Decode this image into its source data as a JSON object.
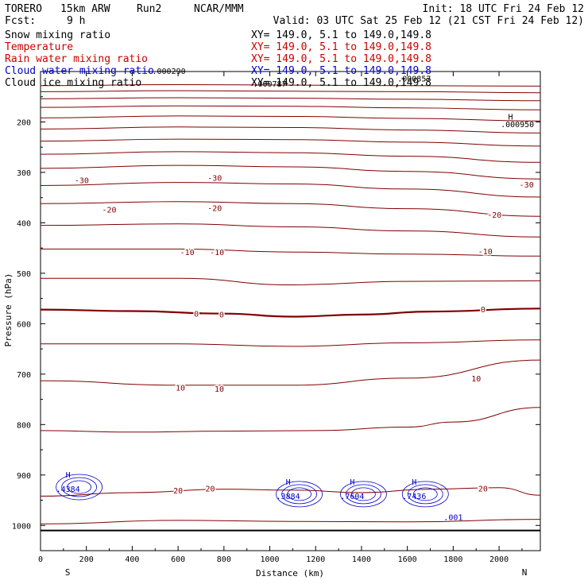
{
  "header": {
    "model": "TORERO",
    "resolution": "15km ARW",
    "run": "Run2",
    "org": "NCAR/MMM",
    "init": "Init: 18 UTC Fri 24 Feb 12",
    "fcst_label": "Fcst:",
    "fcst_value": "9 h",
    "valid": "Valid: 03 UTC Sat 25 Feb 12 (21 CST Fri 24 Feb 12)"
  },
  "fields": [
    {
      "name": "Snow mixing ratio",
      "xy": "XY= 149.0,  5.1 to 149.0,149.8",
      "color": "#000000"
    },
    {
      "name": "Temperature",
      "xy": "XY= 149.0,  5.1 to 149.0,149.8",
      "color": "#cc0000"
    },
    {
      "name": "Rain water mixing ratio",
      "xy": "XY= 149.0,  5.1 to 149.0,149.8",
      "color": "#cc0000"
    },
    {
      "name": "Cloud water mixing ratio",
      "xy": "XY= 149.0,  5.1 to 149.0,149.8",
      "color": "#0000cc"
    },
    {
      "name": "Cloud ice mixing ratio",
      "xy": "XY= 149.0,  5.1 to 149.0,149.8",
      "color": "#000000"
    }
  ],
  "chart_data": {
    "type": "contour-cross-section",
    "xlabel": "Distance (km)",
    "ylabel": "Pressure (hPa)",
    "xlim": [
      0,
      2180
    ],
    "ylim": [
      1050,
      100
    ],
    "x_ticks": [
      0,
      200,
      400,
      600,
      800,
      1000,
      1200,
      1400,
      1600,
      1800,
      2000
    ],
    "y_ticks": [
      200,
      300,
      400,
      500,
      600,
      700,
      800,
      900,
      1000
    ],
    "left_end_label": "S",
    "right_end_label": "N",
    "surface_pressure": 1010,
    "temperature_contours": [
      {
        "value": -50,
        "points": [
          [
            0,
            128
          ],
          [
            600,
            126
          ],
          [
            1100,
            127
          ],
          [
            1600,
            128
          ],
          [
            2180,
            129
          ]
        ]
      },
      {
        "value": -45,
        "points": [
          [
            0,
            140
          ],
          [
            600,
            138
          ],
          [
            1100,
            139
          ],
          [
            1600,
            140
          ],
          [
            2180,
            142
          ]
        ]
      },
      {
        "value": -45,
        "points": [
          [
            0,
            154
          ],
          [
            600,
            152
          ],
          [
            1100,
            153
          ],
          [
            1600,
            155
          ],
          [
            2180,
            158
          ]
        ]
      },
      {
        "value": -40,
        "points": [
          [
            0,
            171
          ],
          [
            600,
            168
          ],
          [
            1100,
            169
          ],
          [
            1600,
            172
          ],
          [
            2180,
            176
          ]
        ]
      },
      {
        "value": -40,
        "points": [
          [
            0,
            192
          ],
          [
            600,
            188
          ],
          [
            1100,
            189
          ],
          [
            1600,
            193
          ],
          [
            2180,
            198
          ]
        ]
      },
      {
        "value": -35,
        "points": [
          [
            0,
            214
          ],
          [
            600,
            210
          ],
          [
            1100,
            211
          ],
          [
            1600,
            216
          ],
          [
            2180,
            222
          ]
        ]
      },
      {
        "value": -35,
        "points": [
          [
            0,
            238
          ],
          [
            600,
            234
          ],
          [
            1100,
            235
          ],
          [
            1600,
            240
          ],
          [
            2180,
            248
          ]
        ]
      },
      {
        "value": -30,
        "points": [
          [
            0,
            264
          ],
          [
            600,
            259
          ],
          [
            1100,
            261
          ],
          [
            1600,
            268
          ],
          [
            2180,
            280
          ]
        ]
      },
      {
        "value": -30,
        "points": [
          [
            0,
            292
          ],
          [
            600,
            286
          ],
          [
            1100,
            289
          ],
          [
            1600,
            298
          ],
          [
            2180,
            313
          ]
        ]
      },
      {
        "value": -25,
        "points": [
          [
            0,
            326
          ],
          [
            600,
            320
          ],
          [
            1100,
            323
          ],
          [
            1600,
            333
          ],
          [
            2180,
            349
          ]
        ]
      },
      {
        "value": -20,
        "points": [
          [
            0,
            362
          ],
          [
            600,
            358
          ],
          [
            1100,
            362
          ],
          [
            1600,
            372
          ],
          [
            2180,
            387
          ]
        ]
      },
      {
        "value": -15,
        "points": [
          [
            0,
            405
          ],
          [
            600,
            402
          ],
          [
            1100,
            408
          ],
          [
            1600,
            416
          ],
          [
            2180,
            428
          ]
        ]
      },
      {
        "value": -10,
        "points": [
          [
            0,
            452
          ],
          [
            600,
            452
          ],
          [
            1100,
            458
          ],
          [
            1600,
            462
          ],
          [
            2180,
            466
          ]
        ]
      },
      {
        "value": -5,
        "points": [
          [
            0,
            510
          ],
          [
            600,
            510
          ],
          [
            1100,
            523
          ],
          [
            1600,
            516
          ],
          [
            2180,
            515
          ]
        ]
      },
      {
        "value": 0,
        "points": [
          [
            0,
            572
          ],
          [
            400,
            575
          ],
          [
            800,
            580
          ],
          [
            1100,
            586
          ],
          [
            1400,
            582
          ],
          [
            1700,
            576
          ],
          [
            2180,
            570
          ]
        ]
      },
      {
        "value": 5,
        "points": [
          [
            0,
            640
          ],
          [
            600,
            640
          ],
          [
            1100,
            645
          ],
          [
            1600,
            638
          ],
          [
            2180,
            632
          ]
        ]
      },
      {
        "value": 10,
        "points": [
          [
            0,
            713
          ],
          [
            600,
            722
          ],
          [
            1100,
            722
          ],
          [
            1600,
            708
          ],
          [
            2180,
            672
          ]
        ]
      },
      {
        "value": 15,
        "points": [
          [
            0,
            812
          ],
          [
            400,
            815
          ],
          [
            800,
            813
          ],
          [
            1200,
            812
          ],
          [
            1600,
            805
          ],
          [
            1800,
            795
          ],
          [
            2180,
            766
          ]
        ]
      },
      {
        "value": 20,
        "points": [
          [
            0,
            942
          ],
          [
            400,
            935
          ],
          [
            800,
            928
          ],
          [
            1100,
            930
          ],
          [
            1400,
            935
          ],
          [
            1700,
            928
          ],
          [
            2000,
            925
          ],
          [
            2180,
            940
          ]
        ]
      },
      {
        "value": 25,
        "points": [
          [
            0,
            997
          ],
          [
            600,
            990
          ],
          [
            1100,
            992
          ],
          [
            1600,
            993
          ],
          [
            2180,
            988
          ]
        ]
      }
    ],
    "contour_labels": [
      {
        "text": "-30",
        "x": 180,
        "p": 317
      },
      {
        "text": "-30",
        "x": 760,
        "p": 312
      },
      {
        "text": "-30",
        "x": 2120,
        "p": 325
      },
      {
        "text": "-20",
        "x": 300,
        "p": 375
      },
      {
        "text": "-20",
        "x": 760,
        "p": 372
      },
      {
        "text": "-20",
        "x": 1980,
        "p": 385
      },
      {
        "text": "-10",
        "x": 640,
        "p": 459
      },
      {
        "text": "-10",
        "x": 770,
        "p": 459
      },
      {
        "text": "-10",
        "x": 1940,
        "p": 458
      },
      {
        "text": "0",
        "x": 680,
        "p": 581
      },
      {
        "text": "0",
        "x": 790,
        "p": 583
      },
      {
        "text": "0",
        "x": 1930,
        "p": 573
      },
      {
        "text": "10",
        "x": 610,
        "p": 728
      },
      {
        "text": "10",
        "x": 780,
        "p": 730
      },
      {
        "text": "10",
        "x": 1900,
        "p": 710
      },
      {
        "text": "20",
        "x": 600,
        "p": 932
      },
      {
        "text": "20",
        "x": 740,
        "p": 928
      },
      {
        "text": "20",
        "x": 1930,
        "p": 928
      }
    ],
    "cloud_water_maxima": [
      {
        "label": "H",
        "value": ".4384",
        "x": 120,
        "p": 924
      },
      {
        "label": "H",
        "value": ".3884",
        "x": 1080,
        "p": 938
      },
      {
        "label": "H",
        "value": ".7604",
        "x": 1360,
        "p": 938
      },
      {
        "label": "H",
        "value": ".7436",
        "x": 1630,
        "p": 938
      },
      {
        "label": "",
        "value": ".001",
        "x": 1800,
        "p": 980
      }
    ],
    "extra_labels": [
      {
        "text": ".000787",
        "x": 1000,
        "p": 130
      },
      {
        "text": ".000290",
        "x": 560,
        "p": 105
      },
      {
        "text": "H",
        "x": 2050,
        "p": 195
      },
      {
        "text": ".000950",
        "x": 2080,
        "p": 210
      },
      {
        "text": ".000857",
        "x": 1630,
        "p": 120
      }
    ]
  },
  "palette": {
    "temperature": "#800000",
    "cloud_water": "#0000cc",
    "axis": "#000000"
  }
}
